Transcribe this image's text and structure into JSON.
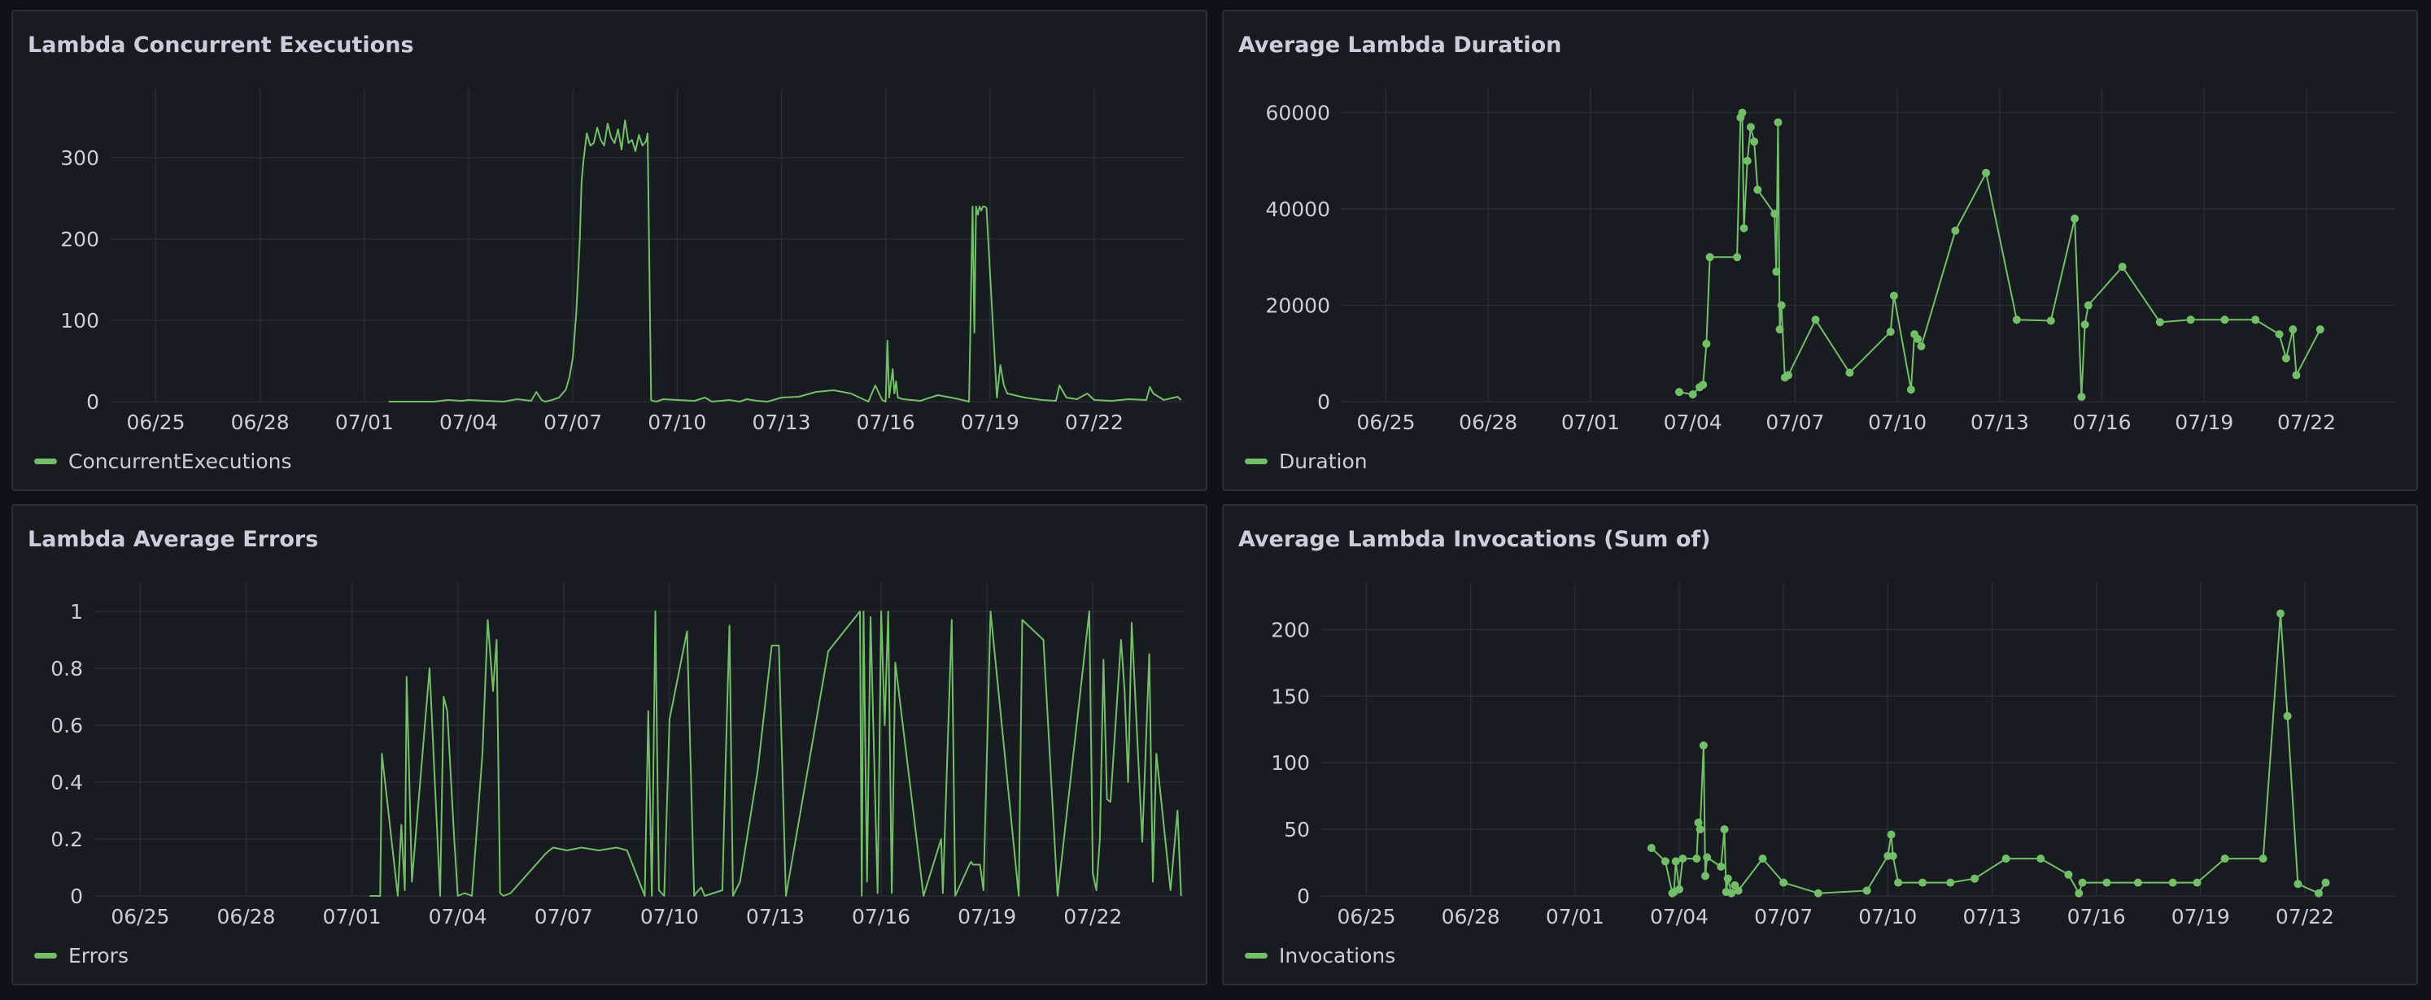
{
  "colors": {
    "series": "#73bf69",
    "grid": "#2a2d33",
    "panel": "#181b1f",
    "background": "#111217"
  },
  "panels": [
    {
      "title": "Lambda Concurrent Executions",
      "legend": "ConcurrentExecutions"
    },
    {
      "title": "Average Lambda Duration",
      "legend": "Duration"
    },
    {
      "title": "Lambda Average Errors",
      "legend": "Errors"
    },
    {
      "title": "Average Lambda Invocations (Sum of)",
      "legend": "Invocations"
    }
  ],
  "chart_data": [
    {
      "type": "line",
      "title": "Lambda Concurrent Executions",
      "x_tick_labels": [
        "06/25",
        "06/28",
        "07/01",
        "07/04",
        "07/07",
        "07/10",
        "07/13",
        "07/16",
        "07/19",
        "07/22"
      ],
      "y_ticks": [
        0,
        100,
        200,
        300
      ],
      "ylim": [
        0,
        385
      ],
      "xlim_days": [
        23.7,
        54.6
      ],
      "show_points": false,
      "series": [
        {
          "name": "ConcurrentExecutions",
          "x": [
            31.7,
            32.7,
            33,
            33.4,
            33.8,
            34,
            34.5,
            35,
            35.4,
            35.8,
            35.95,
            36.1,
            36.2,
            36.4,
            36.6,
            36.8,
            36.9,
            37,
            37.1,
            37.2,
            37.25,
            37.3,
            37.4,
            37.5,
            37.6,
            37.7,
            37.8,
            37.9,
            38,
            38.1,
            38.2,
            38.3,
            38.4,
            38.5,
            38.6,
            38.7,
            38.8,
            38.9,
            39,
            39.1,
            39.15,
            39.25,
            39.3,
            39.4,
            39.6,
            40,
            40.5,
            40.8,
            41,
            41.5,
            41.8,
            42,
            42.3,
            42.6,
            43,
            43.5,
            44,
            44.5,
            45,
            45.4,
            45.5,
            45.7,
            45.9,
            46,
            46.05,
            46.1,
            46.2,
            46.25,
            46.3,
            46.35,
            46.5,
            47,
            47.5,
            48,
            48.4,
            48.5,
            48.55,
            48.6,
            48.65,
            48.7,
            48.75,
            48.8,
            48.85,
            48.9,
            49.2,
            49.3,
            49.4,
            49.5,
            50,
            50.5,
            50.9,
            51,
            51.2,
            51.5,
            51.8,
            52,
            52.5,
            53,
            53.5,
            53.6,
            53.7,
            54,
            54.4,
            54.5
          ],
          "values": [
            0,
            0,
            0,
            2,
            1,
            2,
            1,
            0,
            3,
            1,
            12,
            2,
            0,
            2,
            5,
            15,
            30,
            55,
            110,
            200,
            270,
            295,
            330,
            315,
            318,
            337,
            322,
            315,
            342,
            325,
            318,
            335,
            310,
            346,
            318,
            322,
            308,
            328,
            315,
            320,
            330,
            2,
            1,
            0,
            3,
            2,
            1,
            5,
            0,
            2,
            0,
            3,
            1,
            0,
            5,
            6,
            12,
            14,
            10,
            2,
            0,
            20,
            2,
            0,
            75,
            5,
            40,
            10,
            25,
            5,
            3,
            1,
            8,
            4,
            0,
            240,
            85,
            240,
            230,
            240,
            235,
            240,
            240,
            238,
            5,
            45,
            20,
            10,
            5,
            2,
            1,
            20,
            5,
            3,
            10,
            2,
            1,
            3,
            2,
            18,
            10,
            2,
            6,
            2
          ]
        }
      ]
    },
    {
      "type": "line",
      "title": "Average Lambda Duration",
      "x_tick_labels": [
        "06/25",
        "06/28",
        "07/01",
        "07/04",
        "07/07",
        "07/10",
        "07/13",
        "07/16",
        "07/19",
        "07/22"
      ],
      "y_ticks": [
        0,
        20000,
        40000,
        60000
      ],
      "ylim": [
        0,
        65000
      ],
      "xlim_days": [
        23.7,
        54.6
      ],
      "show_points": true,
      "series": [
        {
          "name": "Duration",
          "x": [
            33.6,
            34,
            34.2,
            34.3,
            34.4,
            34.5,
            35.3,
            35.4,
            35.45,
            35.5,
            35.6,
            35.7,
            35.8,
            35.9,
            36.4,
            36.45,
            36.5,
            36.55,
            36.6,
            36.7,
            36.8,
            37.6,
            38.6,
            39.8,
            39.9,
            40.4,
            40.5,
            40.6,
            40.7,
            41.7,
            42.6,
            43.5,
            44.5,
            45.2,
            45.4,
            45.5,
            45.6,
            46.6,
            47.7,
            48.6,
            49.6,
            50.5,
            51.2,
            51.4,
            51.6,
            51.7,
            52.4
          ],
          "values": [
            2000,
            1500,
            3000,
            3500,
            12000,
            30000,
            30000,
            59000,
            60000,
            36000,
            50000,
            57000,
            54000,
            44000,
            39000,
            27000,
            58000,
            15000,
            20000,
            5000,
            5500,
            17000,
            6000,
            14500,
            22000,
            2500,
            14000,
            13000,
            11500,
            35500,
            47500,
            17000,
            16800,
            38000,
            1000,
            16000,
            20000,
            28000,
            16500,
            17000,
            17000,
            17000,
            14000,
            9000,
            15000,
            5500,
            15000
          ]
        }
      ]
    },
    {
      "type": "line",
      "title": "Lambda Average Errors",
      "x_tick_labels": [
        "06/25",
        "06/28",
        "07/01",
        "07/04",
        "07/07",
        "07/10",
        "07/13",
        "07/16",
        "07/19",
        "07/22"
      ],
      "y_ticks": [
        0,
        0.2,
        0.4,
        0.6,
        0.8,
        1
      ],
      "y_tick_labels": [
        "0",
        "0.2",
        "0.4",
        "0.6",
        "0.8",
        "1"
      ],
      "ylim": [
        0,
        1.1
      ],
      "xlim_days": [
        23.7,
        54.6
      ],
      "show_points": false,
      "series": [
        {
          "name": "Errors",
          "x": [
            31.5,
            31.8,
            31.85,
            32.3,
            32.4,
            32.5,
            32.55,
            32.7,
            33.2,
            33.5,
            33.6,
            33.7,
            33.9,
            34,
            34.2,
            34.4,
            34.7,
            34.85,
            35,
            35.1,
            35.2,
            35.3,
            35.5,
            36.5,
            36.7,
            37.1,
            37.5,
            38,
            38.5,
            38.8,
            39.3,
            39.4,
            39.5,
            39.6,
            39.7,
            39.85,
            40,
            40.5,
            40.7,
            40.75,
            40.9,
            41,
            41.5,
            41.6,
            41.7,
            41.8,
            42,
            42.5,
            42.9,
            43,
            43.1,
            43.3,
            44.5,
            45.4,
            45.45,
            45.5,
            45.6,
            45.7,
            45.9,
            46,
            46.1,
            46.2,
            46.3,
            46.4,
            47.2,
            47.7,
            47.75,
            48,
            48.1,
            48.5,
            48.55,
            48.6,
            48.8,
            48.9,
            49.1,
            49.9,
            50,
            50.6,
            51,
            51.9,
            52,
            52.1,
            52.2,
            52.3,
            52.4,
            52.5,
            52.8,
            52.9,
            53,
            53.1,
            53.4,
            53.6,
            53.7,
            53.8,
            54.2,
            54.4,
            54.5
          ],
          "values": [
            0,
            0,
            0.5,
            0,
            0.25,
            0.02,
            0.77,
            0.05,
            0.8,
            0,
            0.7,
            0.65,
            0.2,
            0,
            0.01,
            0,
            0.5,
            0.97,
            0.72,
            0.9,
            0.01,
            0,
            0.01,
            0.15,
            0.17,
            0.16,
            0.17,
            0.16,
            0.17,
            0.16,
            0,
            0.65,
            0,
            1,
            0.02,
            0,
            0.62,
            0.93,
            0,
            0.01,
            0.03,
            0,
            0.02,
            0.5,
            0.95,
            0,
            0.05,
            0.44,
            0.88,
            0.88,
            0.88,
            0,
            0.86,
            1,
            0,
            1,
            0.05,
            0.98,
            0.01,
            1,
            0.6,
            1,
            0.01,
            0.82,
            0,
            0.2,
            0.01,
            0.97,
            0,
            0.11,
            0.12,
            0.11,
            0.11,
            0.02,
            1,
            0,
            0.97,
            0.9,
            0,
            1,
            0.08,
            0.02,
            0.2,
            0.83,
            0.34,
            0.33,
            0.9,
            0.72,
            0.4,
            0.96,
            0.19,
            0.85,
            0.05,
            0.5,
            0.02,
            0.3,
            0
          ]
        }
      ]
    },
    {
      "type": "line",
      "title": "Average Lambda Invocations (Sum of)",
      "x_tick_labels": [
        "06/25",
        "06/28",
        "07/01",
        "07/04",
        "07/07",
        "07/10",
        "07/13",
        "07/16",
        "07/19",
        "07/22"
      ],
      "y_ticks": [
        0,
        50,
        100,
        150,
        200
      ],
      "ylim": [
        0,
        235
      ],
      "xlim_days": [
        23.7,
        54.6
      ],
      "show_points": true,
      "series": [
        {
          "name": "Invocations",
          "x": [
            33.2,
            33.6,
            33.8,
            33.85,
            33.9,
            34,
            34.1,
            34.5,
            34.55,
            34.6,
            34.7,
            34.75,
            34.8,
            35.2,
            35.3,
            35.35,
            35.4,
            35.5,
            35.6,
            35.7,
            36.4,
            37,
            38,
            39.4,
            40,
            40.1,
            40.15,
            40.3,
            41,
            41.8,
            42.5,
            43.4,
            44.4,
            45.2,
            45.5,
            45.6,
            46.3,
            47.2,
            48.2,
            48.9,
            49.7,
            50.8,
            51.3,
            51.5,
            51.8,
            52.4,
            52.6
          ],
          "values": [
            36,
            26,
            2,
            3,
            26,
            5,
            28,
            28,
            55,
            50,
            113,
            15,
            29,
            22,
            50,
            3,
            13,
            2,
            8,
            4,
            28,
            10,
            2,
            4,
            30,
            46,
            30,
            10,
            10,
            10,
            13,
            28,
            28,
            16,
            2,
            10,
            10,
            10,
            10,
            10,
            28,
            28,
            212,
            135,
            9,
            2,
            10
          ]
        }
      ]
    }
  ]
}
